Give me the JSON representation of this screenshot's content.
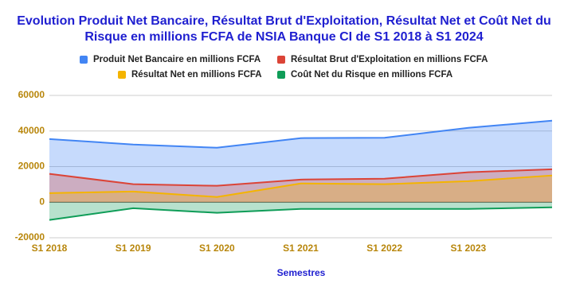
{
  "chart_data": {
    "type": "area",
    "title": "Evolution Produit Net Bancaire, Résultat Brut d'Exploitation, Résultat Net et Coût Net du Risque en millions FCFA de NSIA Banque CI de S1 2018 à S1 2024",
    "x_label": "Semestres",
    "categories": [
      "S1 2018",
      "S1 2019",
      "S1 2020",
      "S1 2021",
      "S1 2022",
      "S1 2023",
      null
    ],
    "series": [
      {
        "name": "Produit Net Bancaire en millions FCFA",
        "color": "#4285f4",
        "values": [
          35500,
          32400,
          30600,
          36000,
          36200,
          41800,
          45800
        ]
      },
      {
        "name": "Résultat Brut d'Exploitation en millions FCFA",
        "color": "#db4437",
        "values": [
          15900,
          10100,
          9200,
          12700,
          13200,
          16800,
          18500
        ]
      },
      {
        "name": "Résultat Net en millions FCFA",
        "color": "#f4b400",
        "values": [
          5100,
          6000,
          2900,
          10500,
          10100,
          11800,
          15000
        ]
      },
      {
        "name": "Coût Net du Risque en millions FCFA",
        "color": "#0f9d58",
        "values": [
          -10000,
          -3400,
          -6000,
          -3800,
          -3800,
          -3800,
          -2900
        ]
      }
    ],
    "ylim": [
      -20000,
      60000
    ],
    "yticks": [
      -20000,
      0,
      20000,
      40000,
      60000
    ],
    "grid": true
  }
}
